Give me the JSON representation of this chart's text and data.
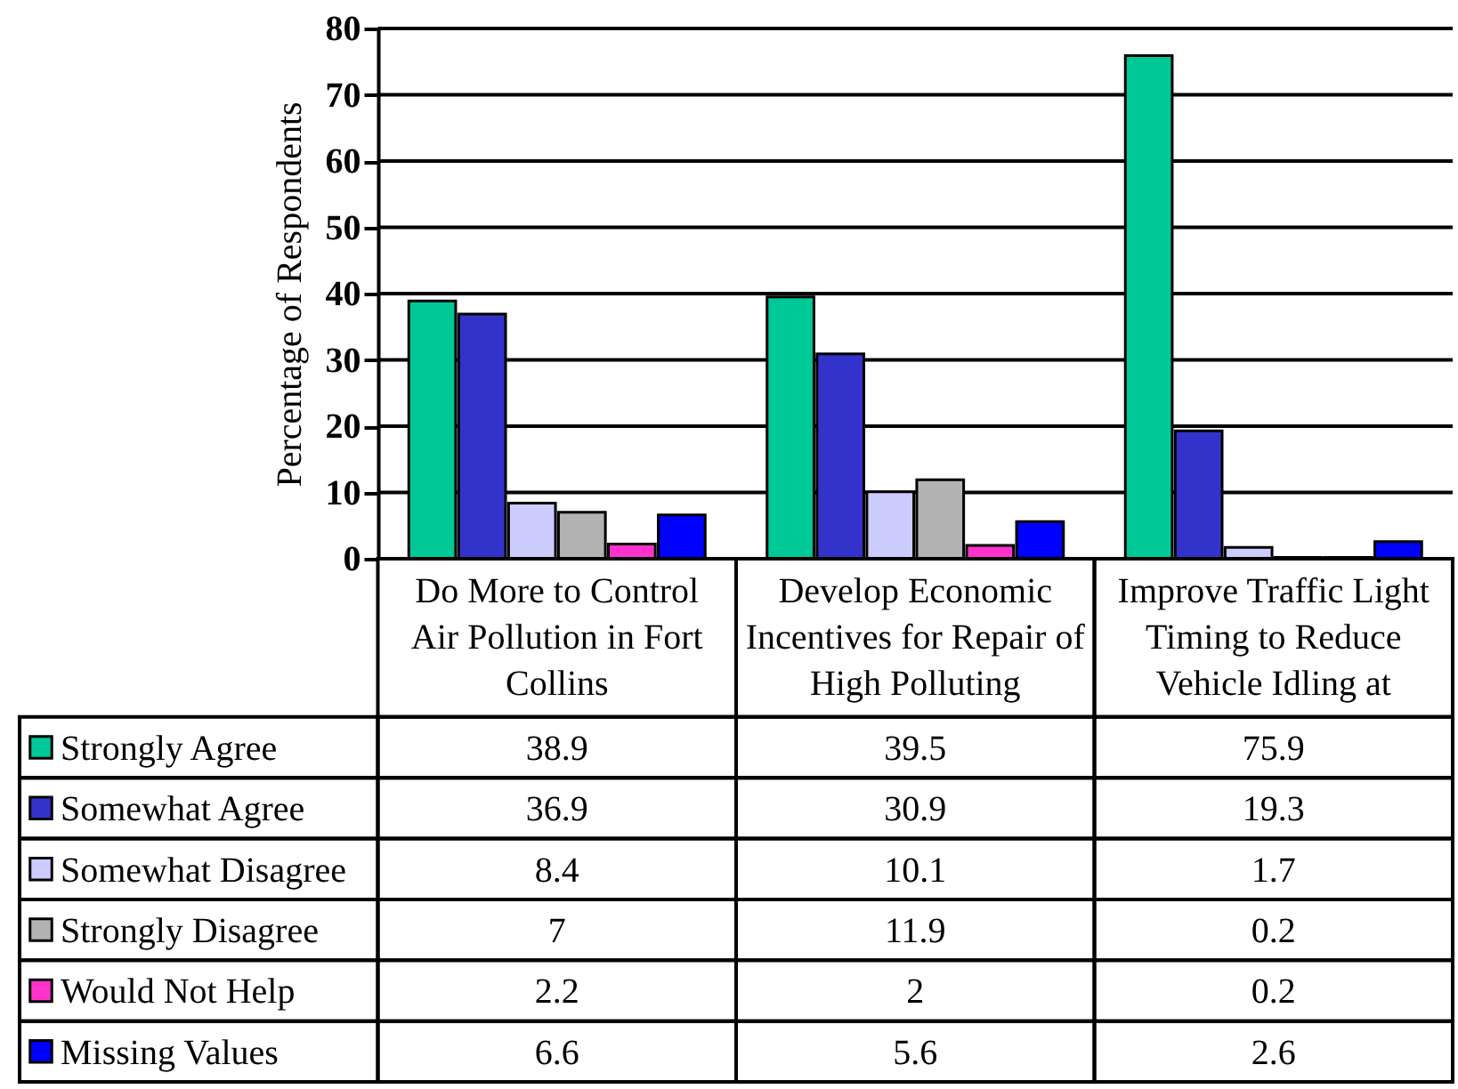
{
  "chart_data": {
    "type": "bar",
    "ylabel": "Percentage of Respondents",
    "categories": [
      "Do More to Control Air Pollution in Fort Collins",
      "Develop Economic Incentives for Repair of High Polluting",
      "Improve Traffic Light Timing to Reduce Vehicle Idling at"
    ],
    "series": [
      {
        "name": "Strongly Agree",
        "color": "#00c896",
        "values": [
          38.9,
          39.5,
          75.9
        ]
      },
      {
        "name": "Somewhat Agree",
        "color": "#3333cc",
        "values": [
          36.9,
          30.9,
          19.3
        ]
      },
      {
        "name": "Somewhat Disagree",
        "color": "#ccccff",
        "values": [
          8.4,
          10.1,
          1.7
        ]
      },
      {
        "name": "Strongly Disagree",
        "color": "#b2b2b2",
        "values": [
          7,
          11.9,
          0.2
        ]
      },
      {
        "name": "Would Not Help",
        "color": "#ff33cc",
        "values": [
          2.2,
          2,
          0.2
        ]
      },
      {
        "name": "Missing Values",
        "color": "#0000ff",
        "values": [
          6.6,
          5.6,
          2.6
        ]
      }
    ],
    "ylim": [
      0,
      80
    ],
    "yticks": [
      0,
      10,
      20,
      30,
      40,
      50,
      60,
      70,
      80
    ],
    "grid": "y",
    "legend": "bottom left",
    "data_labels": true
  }
}
